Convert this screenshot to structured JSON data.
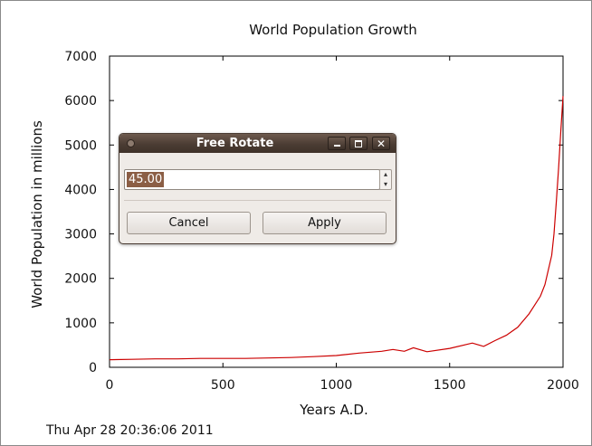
{
  "chart_data": {
    "type": "line",
    "title": "World Population Growth",
    "xlabel": "Years A.D.",
    "ylabel": "World Population in millions",
    "xlim": [
      0,
      2000
    ],
    "ylim": [
      0,
      7000
    ],
    "xticks": [
      0,
      500,
      1000,
      1500,
      2000
    ],
    "yticks": [
      0,
      1000,
      2000,
      3000,
      4000,
      5000,
      6000,
      7000
    ],
    "grid": false,
    "series": [
      {
        "color": "#cc0000",
        "x": [
          0,
          100,
          200,
          300,
          400,
          500,
          600,
          700,
          800,
          900,
          1000,
          1100,
          1200,
          1250,
          1300,
          1340,
          1400,
          1500,
          1600,
          1650,
          1700,
          1750,
          1800,
          1850,
          1900,
          1920,
          1940,
          1950,
          1960,
          1970,
          1980,
          1990,
          2000
        ],
        "y": [
          170,
          180,
          190,
          190,
          200,
          200,
          200,
          210,
          220,
          240,
          265,
          320,
          360,
          400,
          360,
          440,
          350,
          425,
          545,
          470,
          600,
          720,
          900,
          1200,
          1600,
          1860,
          2300,
          2520,
          3000,
          3700,
          4450,
          5300,
          6100
        ]
      }
    ]
  },
  "timestamp": "Thu Apr 28 20:36:06 2011",
  "dialog": {
    "title": "Free Rotate",
    "value": "45.00",
    "cancel_label": "Cancel",
    "apply_label": "Apply",
    "spin_up": "▴",
    "spin_down": "▾",
    "close_glyph": "✕",
    "icons": {
      "window_menu": "window-menu-icon",
      "minimize": "minimize-icon",
      "maximize": "maximize-icon",
      "close": "close-icon"
    }
  }
}
